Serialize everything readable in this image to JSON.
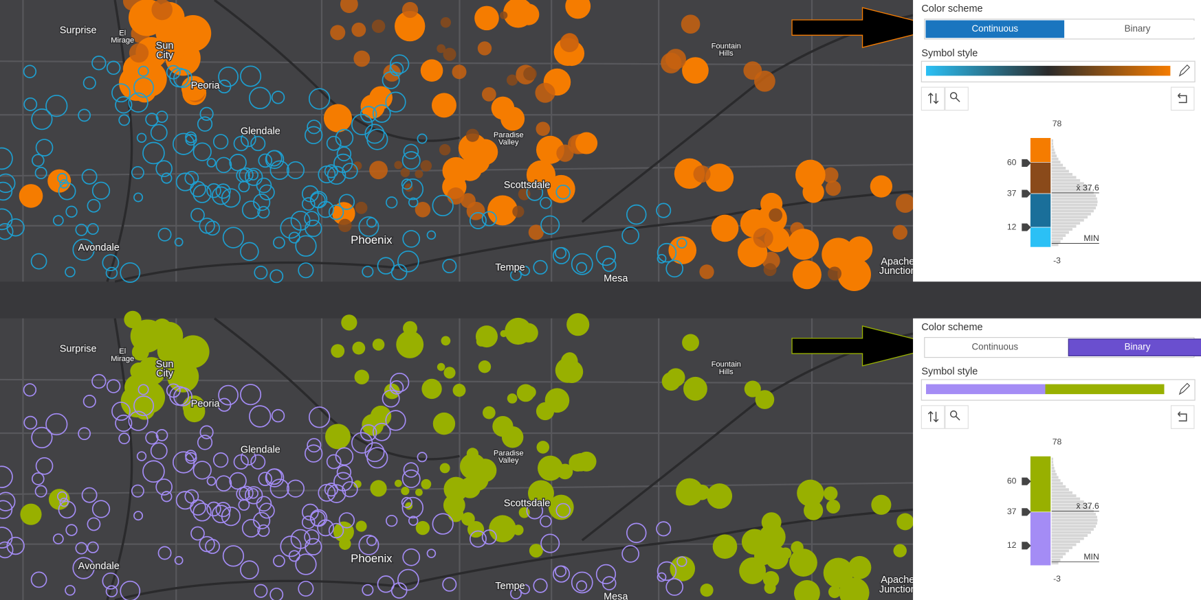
{
  "panels": [
    {
      "map_labels": [
        [
          "Surprise"
        ],
        [
          "El",
          "Mirage"
        ],
        [
          "Sun",
          "City"
        ],
        [
          "Peoria"
        ],
        [
          "Glendale"
        ],
        [
          "Paradise",
          "Valley"
        ],
        [
          "Scottsdale"
        ],
        [
          "Fountain",
          "Hills"
        ],
        [
          "Avondale"
        ],
        [
          "Phoenix"
        ],
        [
          "Tempe"
        ],
        [
          "Mesa"
        ],
        [
          "Apache",
          "Junction"
        ]
      ],
      "color_scheme": {
        "label": "Color scheme",
        "options": [
          "Continuous",
          "Binary"
        ],
        "selected": 0
      },
      "symbol_style": "Symbol style",
      "histogram": {
        "max": 78,
        "handles": [
          60,
          37,
          12
        ],
        "mean": "x̄ 37.6",
        "min_label": "MIN",
        "min": -3
      }
    },
    {
      "map_labels": [
        [
          "Surprise"
        ],
        [
          "El",
          "Mirage"
        ],
        [
          "Sun",
          "City"
        ],
        [
          "Peoria"
        ],
        [
          "Glendale"
        ],
        [
          "Paradise",
          "Valley"
        ],
        [
          "Scottsdale"
        ],
        [
          "Fountain",
          "Hills"
        ],
        [
          "Avondale"
        ],
        [
          "Phoenix"
        ],
        [
          "Tempe"
        ],
        [
          "Mesa"
        ],
        [
          "Apache",
          "Junction"
        ]
      ],
      "color_scheme": {
        "label": "Color scheme",
        "options": [
          "Continuous",
          "Binary"
        ],
        "selected": 1
      },
      "symbol_style": "Symbol style",
      "histogram": {
        "max": 78,
        "handles": [
          60,
          37,
          12
        ],
        "mean": "x̄ 37.6",
        "min_label": "MIN",
        "min": -3
      }
    }
  ]
}
